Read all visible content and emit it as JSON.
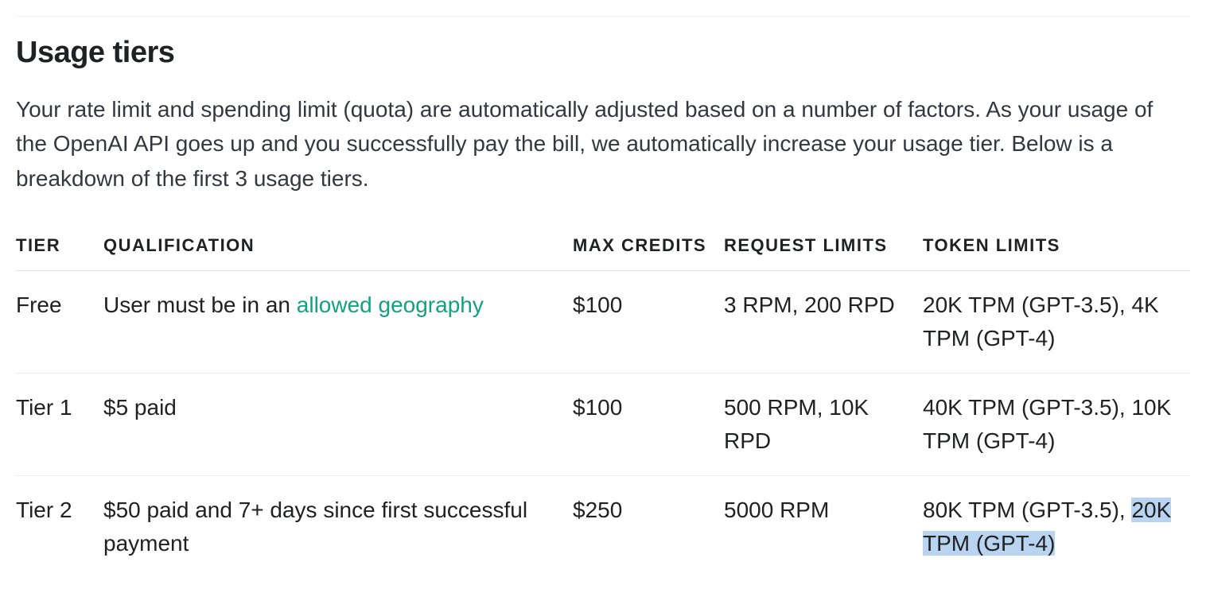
{
  "section": {
    "title": "Usage tiers",
    "intro": "Your rate limit and spending limit (quota) are automatically adjusted based on a number of factors. As your usage of the OpenAI API goes up and you successfully pay the bill, we automatically increase your usage tier. Below is a breakdown of the first 3 usage tiers."
  },
  "table": {
    "columns": {
      "tier": "TIER",
      "qualification": "QUALIFICATION",
      "max_credits": "MAX CREDITS",
      "request_limits": "REQUEST LIMITS",
      "token_limits": "TOKEN LIMITS"
    },
    "rows": {
      "free": {
        "tier": "Free",
        "qualification_prefix": "User must be in an ",
        "qualification_link_text": "allowed geography",
        "max_credits": "$100",
        "request_limits": "3 RPM, 200 RPD",
        "token_limits": "20K TPM (GPT-3.5), 4K TPM (GPT-4)"
      },
      "tier1": {
        "tier": "Tier 1",
        "qualification": "$5 paid",
        "max_credits": "$100",
        "request_limits": "500 RPM, 10K RPD",
        "token_limits": "40K TPM (GPT-3.5), 10K TPM (GPT-4)"
      },
      "tier2": {
        "tier": "Tier 2",
        "qualification": "$50 paid and 7+ days since first successful payment",
        "max_credits": "$250",
        "request_limits": "5000 RPM",
        "token_limits_prefix": "80K TPM (GPT-3.5), ",
        "token_limits_highlight": "20K TPM (GPT-4)"
      }
    }
  },
  "style": {
    "link_color": "#10a37f",
    "highlight_bg": "#b8d4f1",
    "text_color": "#202123",
    "border_color": "#ececec",
    "background_color": "#ffffff"
  }
}
